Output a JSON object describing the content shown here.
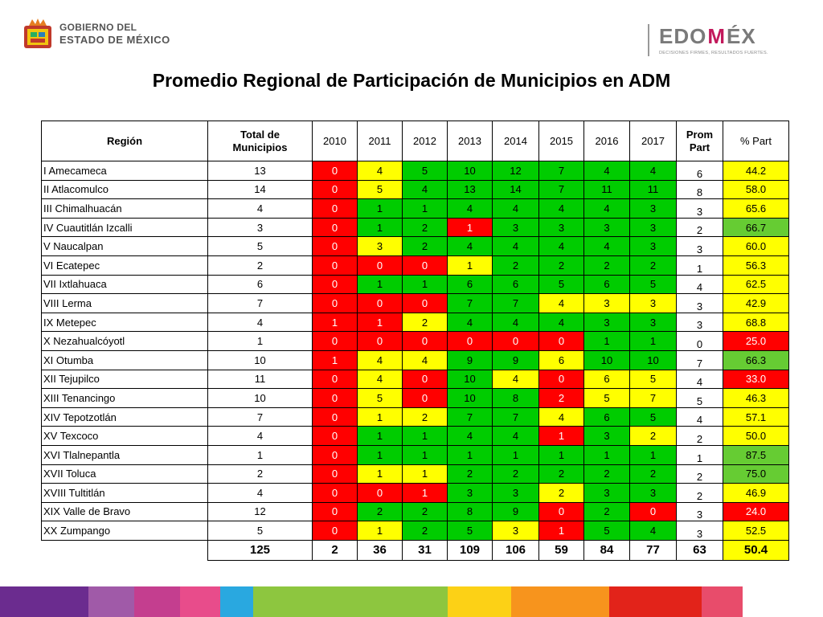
{
  "header": {
    "gov_line1": "GOBIERNO DEL",
    "gov_line2": "ESTADO DE MÉXICO",
    "edo_a": "EDO",
    "edo_m": "M",
    "edo_b": "ÉX",
    "edo_tagline": "DECISIONES FIRMES, RESULTADOS FUERTES."
  },
  "title": "Promedio Regional de Participación de Municipios en ADM",
  "table": {
    "headers": {
      "region": "Región",
      "total_a": "Total de",
      "total_b": "Municipios",
      "years": [
        "2010",
        "2011",
        "2012",
        "2013",
        "2014",
        "2015",
        "2016",
        "2017"
      ],
      "prom_a": "Prom",
      "prom_b": "Part",
      "part": "% Part"
    },
    "rows": [
      {
        "region": "I Amecameca",
        "total": "13",
        "years": [
          "0",
          "4",
          "5",
          "10",
          "12",
          "7",
          "4",
          "4"
        ],
        "colors": [
          "r",
          "y",
          "g",
          "g",
          "g",
          "g",
          "g",
          "g"
        ],
        "prom": "6",
        "part": "44.2",
        "part_color": "y"
      },
      {
        "region": "II Atlacomulco",
        "total": "14",
        "years": [
          "0",
          "5",
          "4",
          "13",
          "14",
          "7",
          "11",
          "11"
        ],
        "colors": [
          "r",
          "y",
          "g",
          "g",
          "g",
          "g",
          "g",
          "g"
        ],
        "prom": "8",
        "part": "58.0",
        "part_color": "y"
      },
      {
        "region": "III Chimalhuacán",
        "total": "4",
        "years": [
          "0",
          "1",
          "1",
          "4",
          "4",
          "4",
          "4",
          "3"
        ],
        "colors": [
          "r",
          "g",
          "g",
          "g",
          "g",
          "g",
          "g",
          "g"
        ],
        "prom": "3",
        "part": "65.6",
        "part_color": "y"
      },
      {
        "region": "IV Cuautitlán Izcalli",
        "total": "3",
        "years": [
          "0",
          "1",
          "2",
          "1",
          "3",
          "3",
          "3",
          "3"
        ],
        "colors": [
          "r",
          "g",
          "g",
          "r",
          "g",
          "g",
          "g",
          "g"
        ],
        "prom": "2",
        "part": "66.7",
        "part_color": "lg"
      },
      {
        "region": "V Naucalpan",
        "total": "5",
        "years": [
          "0",
          "3",
          "2",
          "4",
          "4",
          "4",
          "4",
          "3"
        ],
        "colors": [
          "r",
          "y",
          "g",
          "g",
          "g",
          "g",
          "g",
          "g"
        ],
        "prom": "3",
        "part": "60.0",
        "part_color": "y"
      },
      {
        "region": "VI Ecatepec",
        "total": "2",
        "years": [
          "0",
          "0",
          "0",
          "1",
          "2",
          "2",
          "2",
          "2"
        ],
        "colors": [
          "r",
          "r",
          "r",
          "y",
          "g",
          "g",
          "g",
          "g"
        ],
        "prom": "1",
        "part": "56.3",
        "part_color": "y"
      },
      {
        "region": "VII Ixtlahuaca",
        "total": "6",
        "years": [
          "0",
          "1",
          "1",
          "6",
          "6",
          "5",
          "6",
          "5"
        ],
        "colors": [
          "r",
          "g",
          "g",
          "g",
          "g",
          "g",
          "g",
          "g"
        ],
        "prom": "4",
        "part": "62.5",
        "part_color": "y"
      },
      {
        "region": "VIII Lerma",
        "total": "7",
        "years": [
          "0",
          "0",
          "0",
          "7",
          "7",
          "4",
          "3",
          "3"
        ],
        "colors": [
          "r",
          "r",
          "r",
          "g",
          "g",
          "y",
          "y",
          "y"
        ],
        "prom": "3",
        "part": "42.9",
        "part_color": "y"
      },
      {
        "region": "IX Metepec",
        "total": "4",
        "years": [
          "1",
          "1",
          "2",
          "4",
          "4",
          "4",
          "3",
          "3"
        ],
        "colors": [
          "r",
          "r",
          "y",
          "g",
          "g",
          "g",
          "g",
          "g"
        ],
        "prom": "3",
        "part": "68.8",
        "part_color": "y"
      },
      {
        "region": "X Nezahualcóyotl",
        "total": "1",
        "years": [
          "0",
          "0",
          "0",
          "0",
          "0",
          "0",
          "1",
          "1"
        ],
        "colors": [
          "r",
          "r",
          "r",
          "r",
          "r",
          "r",
          "g",
          "g"
        ],
        "prom": "0",
        "part": "25.0",
        "part_color": "r"
      },
      {
        "region": "XI Otumba",
        "total": "10",
        "years": [
          "1",
          "4",
          "4",
          "9",
          "9",
          "6",
          "10",
          "10"
        ],
        "colors": [
          "r",
          "y",
          "y",
          "g",
          "g",
          "y",
          "g",
          "g"
        ],
        "prom": "7",
        "part": "66.3",
        "part_color": "lg"
      },
      {
        "region": "XII Tejupilco",
        "total": "11",
        "years": [
          "0",
          "4",
          "0",
          "10",
          "4",
          "0",
          "6",
          "5"
        ],
        "colors": [
          "r",
          "y",
          "r",
          "g",
          "y",
          "r",
          "y",
          "y"
        ],
        "prom": "4",
        "part": "33.0",
        "part_color": "r"
      },
      {
        "region": "XIII Tenancingo",
        "total": "10",
        "years": [
          "0",
          "5",
          "0",
          "10",
          "8",
          "2",
          "5",
          "7"
        ],
        "colors": [
          "r",
          "y",
          "r",
          "g",
          "g",
          "r",
          "y",
          "y"
        ],
        "prom": "5",
        "part": "46.3",
        "part_color": "y"
      },
      {
        "region": "XIV Tepotzotlán",
        "total": "7",
        "years": [
          "0",
          "1",
          "2",
          "7",
          "7",
          "4",
          "6",
          "5"
        ],
        "colors": [
          "r",
          "y",
          "y",
          "g",
          "g",
          "y",
          "g",
          "g"
        ],
        "prom": "4",
        "part": "57.1",
        "part_color": "y"
      },
      {
        "region": "XV Texcoco",
        "total": "4",
        "years": [
          "0",
          "1",
          "1",
          "4",
          "4",
          "1",
          "3",
          "2"
        ],
        "colors": [
          "r",
          "g",
          "g",
          "g",
          "g",
          "r",
          "g",
          "y"
        ],
        "prom": "2",
        "part": "50.0",
        "part_color": "y"
      },
      {
        "region": "XVI Tlalnepantla",
        "total": "1",
        "years": [
          "0",
          "1",
          "1",
          "1",
          "1",
          "1",
          "1",
          "1"
        ],
        "colors": [
          "r",
          "g",
          "g",
          "g",
          "g",
          "g",
          "g",
          "g"
        ],
        "prom": "1",
        "part": "87.5",
        "part_color": "lg"
      },
      {
        "region": "XVII Toluca",
        "total": "2",
        "years": [
          "0",
          "1",
          "1",
          "2",
          "2",
          "2",
          "2",
          "2"
        ],
        "colors": [
          "r",
          "y",
          "y",
          "g",
          "g",
          "g",
          "g",
          "g"
        ],
        "prom": "2",
        "part": "75.0",
        "part_color": "lg"
      },
      {
        "region": "XVIII Tultitlán",
        "total": "4",
        "years": [
          "0",
          "0",
          "1",
          "3",
          "3",
          "2",
          "3",
          "3"
        ],
        "colors": [
          "r",
          "r",
          "r",
          "g",
          "g",
          "y",
          "g",
          "g"
        ],
        "prom": "2",
        "part": "46.9",
        "part_color": "y"
      },
      {
        "region": "XIX Valle de Bravo",
        "total": "12",
        "years": [
          "0",
          "2",
          "2",
          "8",
          "9",
          "0",
          "2",
          "0"
        ],
        "colors": [
          "r",
          "g",
          "g",
          "g",
          "g",
          "r",
          "g",
          "r"
        ],
        "prom": "3",
        "part": "24.0",
        "part_color": "r"
      },
      {
        "region": "XX Zumpango",
        "total": "5",
        "years": [
          "0",
          "1",
          "2",
          "5",
          "3",
          "1",
          "5",
          "4"
        ],
        "colors": [
          "r",
          "y",
          "g",
          "g",
          "y",
          "r",
          "g",
          "g"
        ],
        "prom": "3",
        "part": "52.5",
        "part_color": "y"
      }
    ],
    "totals": {
      "total": "125",
      "years": [
        "2",
        "36",
        "31",
        "109",
        "106",
        "59",
        "84",
        "77"
      ],
      "prom": "63",
      "part": "50.4",
      "part_color": "y"
    }
  },
  "bottom_bar_colors": [
    "#6b2c8f",
    "#a05aa8",
    "#c43e8f",
    "#e84c8b",
    "#29a8e0",
    "#8dc63f",
    "#8dc63f",
    "#fcd116",
    "#f7941d",
    "#f7941d",
    "#e2231a",
    "#e84c6b"
  ]
}
